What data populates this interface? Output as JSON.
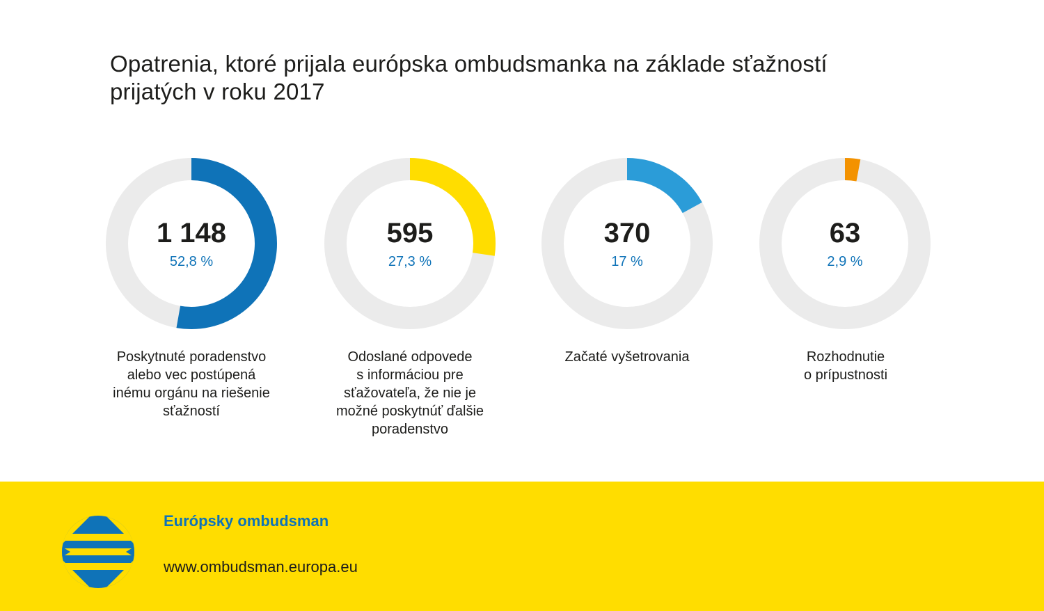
{
  "title_lines": [
    "Opatrenia, ktoré prijala európska ombudsmanka na základe sťažností",
    "prijatých v roku 2017"
  ],
  "chart_data": {
    "type": "donut",
    "title": "Opatrenia, ktoré prijala európska ombudsmanka na základe sťažností prijatých v roku 2017",
    "items": [
      {
        "value": 1148,
        "value_label": "1 148",
        "percent": 52.8,
        "percent_label": "52,8 %",
        "color": "#0f73b8",
        "label_lines": [
          "Poskytnuté poradenstvo",
          "alebo vec postúpená",
          "inému orgánu na riešenie",
          "sťažností"
        ]
      },
      {
        "value": 595,
        "value_label": "595",
        "percent": 27.3,
        "percent_label": "27,3 %",
        "color": "#ffdd00",
        "label_lines": [
          "Odoslané odpovede",
          "s informáciou pre",
          "sťažovateľa, že nie je",
          "možné poskytnúť ďalšie",
          "poradenstvo"
        ]
      },
      {
        "value": 370,
        "value_label": "370",
        "percent": 17,
        "percent_label": "17 %",
        "color": "#2b9cd8",
        "label_lines": [
          "Začaté vyšetrovania"
        ]
      },
      {
        "value": 63,
        "value_label": "63",
        "percent": 2.9,
        "percent_label": "2,9 %",
        "color": "#f39200",
        "label_lines": [
          "Rozhodnutie",
          "o prípustnosti"
        ]
      }
    ],
    "track_color": "#ebebeb"
  },
  "footer": {
    "org_name": "Európsky ombudsman",
    "url": "www.ombudsman.europa.eu",
    "logo_icon": "european-ombudsman-logo-icon"
  }
}
